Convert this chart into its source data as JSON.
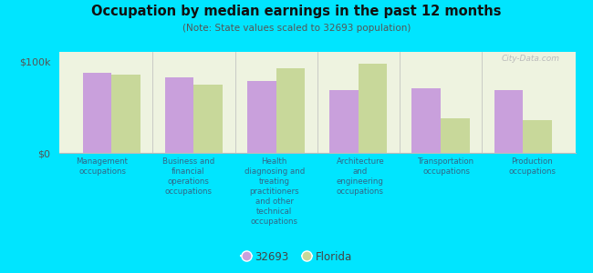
{
  "title": "Occupation by median earnings in the past 12 months",
  "subtitle": "(Note: State values scaled to 32693 population)",
  "categories": [
    "Management\noccupations",
    "Business and\nfinancial\noperations\noccupations",
    "Health\ndiagnosing and\ntreating\npractitioners\nand other\ntechnical\noccupations",
    "Architecture\nand\nengineering\noccupations",
    "Transportation\noccupations",
    "Production\noccupations"
  ],
  "values_32693": [
    87000,
    82000,
    78000,
    68000,
    70000,
    68000
  ],
  "values_florida": [
    85000,
    74000,
    92000,
    97000,
    38000,
    36000
  ],
  "color_32693": "#c9a0dc",
  "color_florida": "#c8d89a",
  "ylim": [
    0,
    110000
  ],
  "yticks": [
    0,
    100000
  ],
  "ytick_labels": [
    "$0",
    "$100k"
  ],
  "background_color": "#00e5ff",
  "plot_bg_color": "#eef3e0",
  "legend_label_32693": "32693",
  "legend_label_florida": "Florida",
  "watermark": "City-Data.com",
  "bar_width": 0.35,
  "text_color": "#336688",
  "title_color": "#111111",
  "subtitle_color": "#555555"
}
